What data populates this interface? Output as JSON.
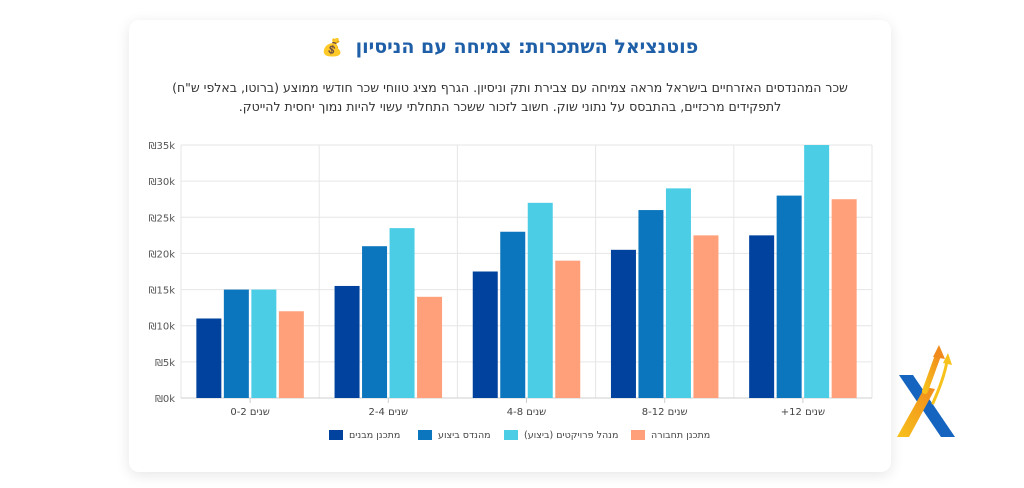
{
  "title": "פוטנציאל השתכרות: צמיחה עם הניסיון",
  "title_emoji": "💰",
  "description": "שכר המהנדסים האזרחיים בישראל מראה צמיחה עם צבירת ותק וניסיון. הגרף מציג טווחי שכר חודשי ממוצע (ברוטו, באלפי ש\"ח) לתפקידים מרכזיים, בהתבסס על נתוני שוק. חשוב לזכור ששכר התחלתי עשוי להיות נמוך יחסית להייטק.",
  "colors": {
    "title": "#1f5fa8",
    "text": "#333333",
    "grid": "#e6e6e6"
  },
  "chart_data": {
    "type": "bar",
    "categories": [
      "0-2 שנים",
      "2-4 שנים",
      "4-8 שנים",
      "8-12 שנים",
      "+12 שנים"
    ],
    "y_tick_labels": [
      "₪0k",
      "₪5k",
      "₪10k",
      "₪15k",
      "₪20k",
      "₪25k",
      "₪30k",
      "₪35k"
    ],
    "ylim": [
      0,
      35
    ],
    "grid": true,
    "legend_position": "bottom",
    "series": [
      {
        "name": "מתכנן מבנים",
        "color": "#00429d",
        "values": [
          11,
          15.5,
          17.5,
          20.5,
          22.5
        ]
      },
      {
        "name": "מהנדס ביצוע",
        "color": "#0b76bd",
        "values": [
          15,
          21,
          23,
          26,
          28
        ]
      },
      {
        "name": "מנהל פרויקטים (ביצוע)",
        "color": "#4ccde6",
        "values": [
          15,
          23.5,
          27,
          29,
          35
        ]
      },
      {
        "name": "מתכנן תחבורה",
        "color": "#ffa07a",
        "values": [
          12,
          14,
          19,
          22.5,
          27.5
        ]
      }
    ]
  },
  "logo": {
    "icon": "x-arrow-logo-icon",
    "colors": [
      "#1565c0",
      "#f9a825"
    ]
  }
}
